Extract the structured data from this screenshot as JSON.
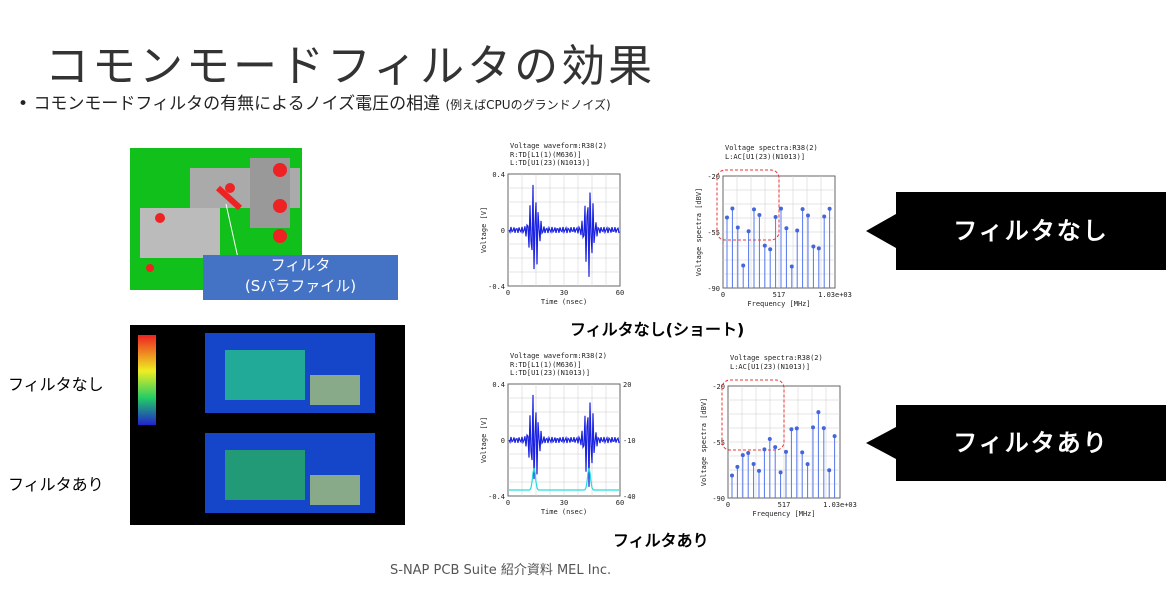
{
  "title": "コモンモードフィルタの効果",
  "bullet": {
    "text": "コモンモードフィルタの有無によるノイズ電圧の相違",
    "note": "(例えばCPUのグランドノイズ)"
  },
  "pcb_callout": [
    "フィルタ",
    "(Sパラファイル)"
  ],
  "heatmap_labels": [
    "フィルタなし",
    "フィルタあり"
  ],
  "plots": [
    {
      "title": "Voltage waveform:R38(2)",
      "legend": [
        "R:TD[L1(1)(M636)]",
        "L:TD[U1(23)(N1013)]"
      ],
      "yticks": [
        "0.4",
        "0",
        "-0.4"
      ],
      "xticks": [
        "0",
        "30",
        "60"
      ],
      "xlabel": "Time (nsec)",
      "ylabel": "Voltage [V]"
    },
    {
      "title": "Voltage spectra:R38(2)",
      "legend": [
        "L:AC[U1(23)(N1013)]"
      ],
      "yticks": [
        "-20",
        "-55",
        "-90"
      ],
      "xticks": [
        "0",
        "517",
        "1.03e+03"
      ],
      "xlabel": "Frequency [MHz]",
      "ylabel": "Voltage spectra [dBV]"
    },
    {
      "title": "Voltage waveform:R38(2)",
      "legend": [
        "R:TD[L1(1)(M636)]",
        "L:TD[U1(23)(N1013)]"
      ],
      "yticks": [
        "0.4",
        "0",
        "-0.4"
      ],
      "y2ticks": [
        "20",
        "-10",
        "-40"
      ],
      "xticks": [
        "0",
        "30",
        "60"
      ],
      "xlabel": "Time (nsec)",
      "ylabel": "Voltage [V]"
    },
    {
      "title": "Voltage spectra:R38(2)",
      "legend": [
        "L:AC[U1(23)(N1013)]"
      ],
      "yticks": [
        "-20",
        "-55",
        "-90"
      ],
      "xticks": [
        "0",
        "517",
        "1.03e+03"
      ],
      "xlabel": "Frequency [MHz]",
      "ylabel": "Voltage spectra [dBV]"
    }
  ],
  "plot_captions": [
    "フィルタなし(ショート)",
    "フィルタあり"
  ],
  "callouts": [
    "フィルタなし",
    "フィルタあり"
  ],
  "footer": "S-NAP PCB Suite 紹介資料 MEL Inc."
}
